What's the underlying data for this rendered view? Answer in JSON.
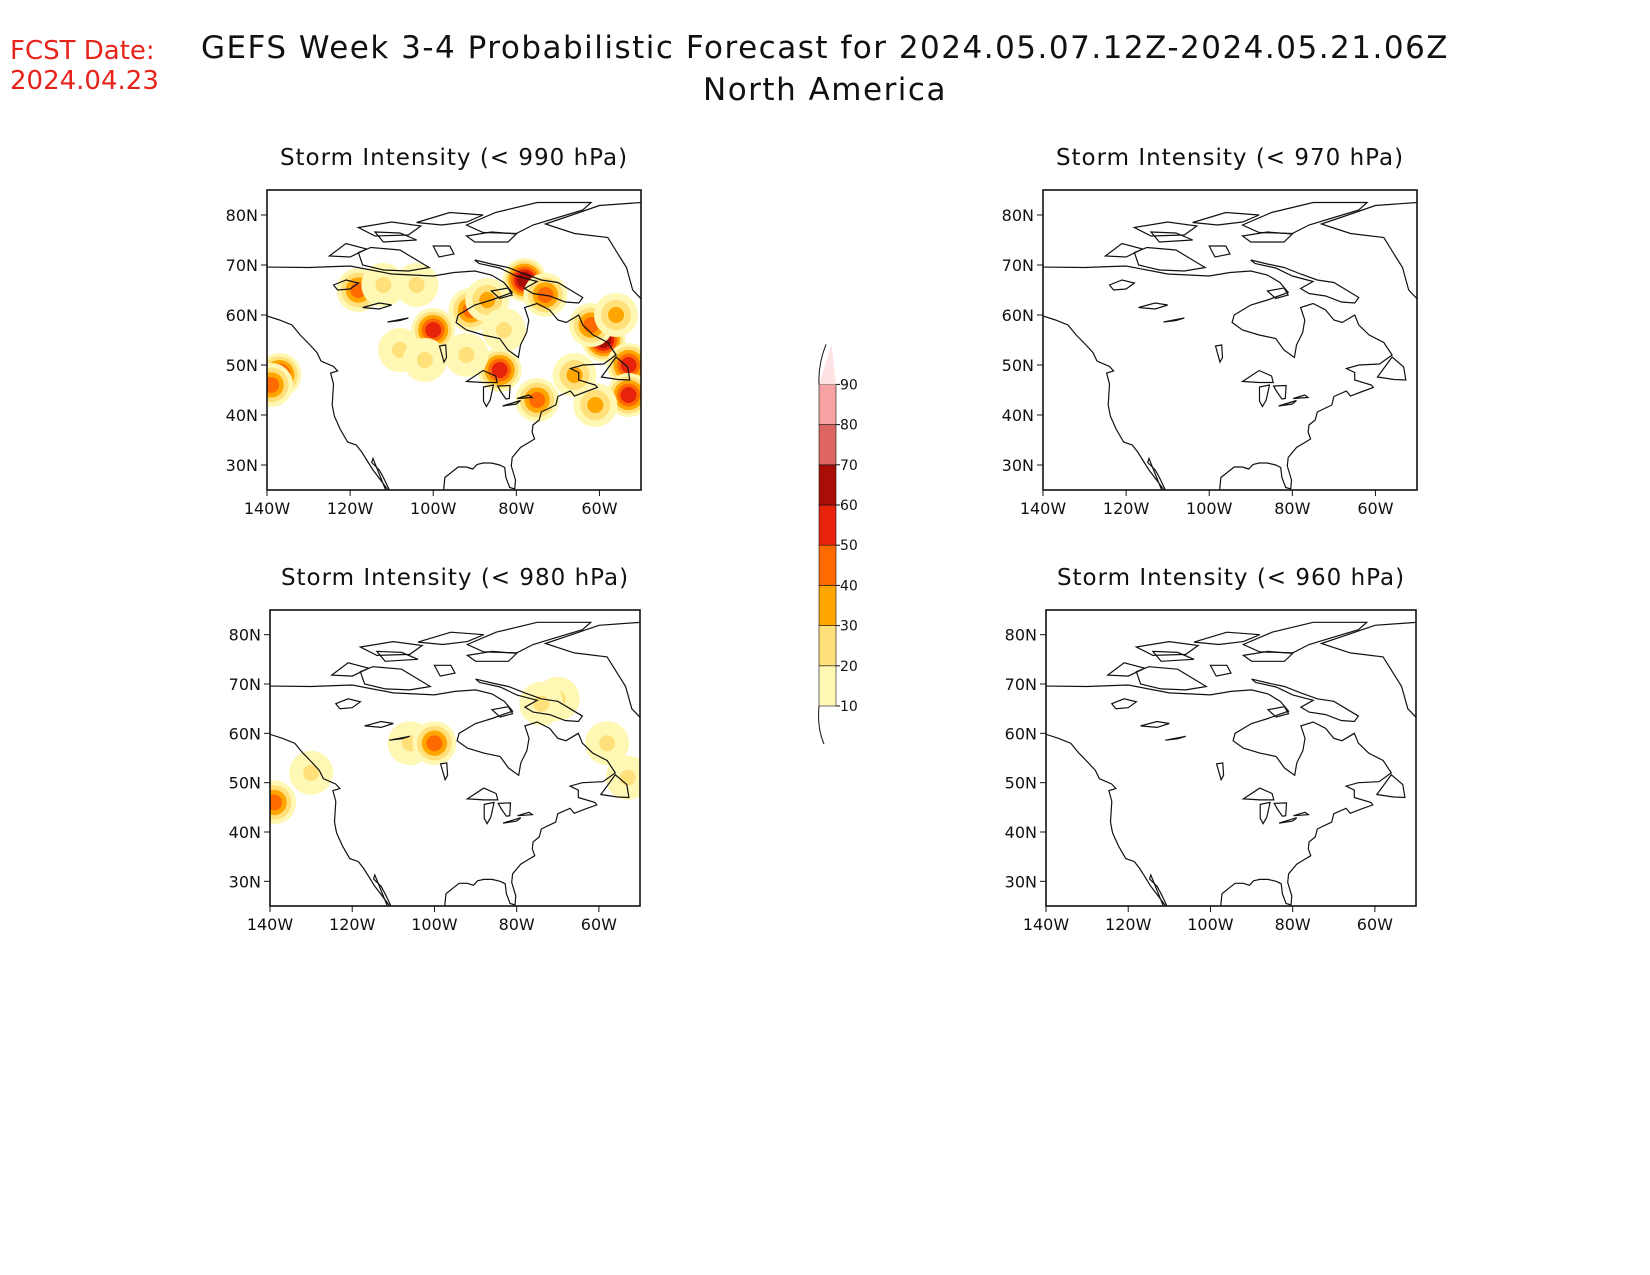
{
  "header": {
    "fcst_label": "FCST Date:",
    "fcst_date": "2024.04.23",
    "title": "GEFS Week 3-4 Probabilistic Forecast for 2024.05.07.12Z-2024.05.21.06Z",
    "subtitle": "North America"
  },
  "colors": {
    "fcst_text": "#e8231b",
    "levels": [
      "#fff8b5",
      "#ffe07a",
      "#ffa500",
      "#ff6a00",
      "#e8230b",
      "#a80d06",
      "#de6662",
      "#f6a2a2",
      "#fde3e3"
    ]
  },
  "panels": [
    {
      "title": "Storm Intensity (< 990 hPa)",
      "lat_ticks": [
        "80N",
        "70N",
        "60N",
        "50N",
        "40N",
        "30N"
      ],
      "lon_ticks": [
        "140W",
        "120W",
        "100W",
        "80W",
        "60W"
      ],
      "blobs": [
        {
          "lon": -137,
          "lat": 48,
          "level": 4
        },
        {
          "lon": -139,
          "lat": 46,
          "level": 3
        },
        {
          "lon": -118,
          "lat": 65,
          "level": 3
        },
        {
          "lon": -112,
          "lat": 66,
          "level": 1
        },
        {
          "lon": -104,
          "lat": 66,
          "level": 1
        },
        {
          "lon": -108,
          "lat": 53,
          "level": 1
        },
        {
          "lon": -100,
          "lat": 57,
          "level": 4
        },
        {
          "lon": -102,
          "lat": 51,
          "level": 1
        },
        {
          "lon": -91,
          "lat": 61,
          "level": 3
        },
        {
          "lon": -87,
          "lat": 63,
          "level": 2
        },
        {
          "lon": -78,
          "lat": 67,
          "level": 5
        },
        {
          "lon": -73,
          "lat": 64,
          "level": 3
        },
        {
          "lon": -83,
          "lat": 57,
          "level": 1
        },
        {
          "lon": -84,
          "lat": 49,
          "level": 4
        },
        {
          "lon": -75,
          "lat": 43,
          "level": 3
        },
        {
          "lon": -66,
          "lat": 48,
          "level": 2
        },
        {
          "lon": -59,
          "lat": 55,
          "level": 5
        },
        {
          "lon": -62,
          "lat": 58,
          "level": 3
        },
        {
          "lon": -56,
          "lat": 60,
          "level": 2
        },
        {
          "lon": -53,
          "lat": 50,
          "level": 4
        },
        {
          "lon": -53,
          "lat": 44,
          "level": 4
        },
        {
          "lon": -61,
          "lat": 42,
          "level": 2
        },
        {
          "lon": -92,
          "lat": 52,
          "level": 1
        }
      ]
    },
    {
      "title": "Storm Intensity (< 970 hPa)",
      "lat_ticks": [
        "80N",
        "70N",
        "60N",
        "50N",
        "40N",
        "30N"
      ],
      "lon_ticks": [
        "140W",
        "120W",
        "100W",
        "80W",
        "60W"
      ],
      "blobs": []
    },
    {
      "title": "Storm Intensity (< 980 hPa)",
      "lat_ticks": [
        "80N",
        "70N",
        "60N",
        "50N",
        "40N",
        "30N"
      ],
      "lon_ticks": [
        "140W",
        "120W",
        "100W",
        "80W",
        "60W"
      ],
      "blobs": [
        {
          "lon": -139,
          "lat": 46,
          "level": 3
        },
        {
          "lon": -130,
          "lat": 52,
          "level": 1
        },
        {
          "lon": -106,
          "lat": 58,
          "level": 1
        },
        {
          "lon": -100,
          "lat": 58,
          "level": 3
        },
        {
          "lon": -70,
          "lat": 67,
          "level": 1
        },
        {
          "lon": -74,
          "lat": 66,
          "level": 1
        },
        {
          "lon": -58,
          "lat": 58,
          "level": 1
        },
        {
          "lon": -53,
          "lat": 51,
          "level": 1
        }
      ]
    },
    {
      "title": "Storm Intensity (< 960 hPa)",
      "lat_ticks": [
        "80N",
        "70N",
        "60N",
        "50N",
        "40N",
        "30N"
      ],
      "lon_ticks": [
        "140W",
        "120W",
        "100W",
        "80W",
        "60W"
      ],
      "blobs": []
    }
  ],
  "colorbar": {
    "labels": [
      "10",
      "20",
      "30",
      "40",
      "50",
      "60",
      "70",
      "80",
      "90"
    ]
  }
}
